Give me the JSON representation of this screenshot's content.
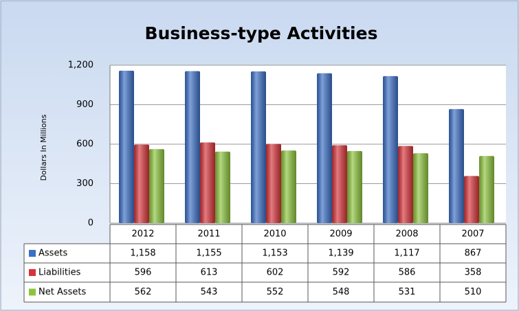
{
  "chart_data": {
    "type": "bar",
    "title": "Business-type Activities",
    "y_label": "Dollars In Millions",
    "categories": [
      "2012",
      "2011",
      "2010",
      "2009",
      "2008",
      "2007"
    ],
    "series": [
      {
        "name": "Assets",
        "color": "#3b6fc6",
        "values": [
          1158,
          1155,
          1153,
          1139,
          1117,
          867
        ],
        "value_labels": [
          "1,158",
          "1,155",
          "1,153",
          "1,139",
          "1,117",
          "867"
        ]
      },
      {
        "name": "Liabilities",
        "color": "#d7343a",
        "values": [
          596,
          613,
          602,
          592,
          586,
          358
        ],
        "value_labels": [
          "596",
          "613",
          "602",
          "592",
          "586",
          "358"
        ]
      },
      {
        "name": "Net Assets",
        "color": "#8cc43c",
        "values": [
          562,
          543,
          552,
          548,
          531,
          510
        ],
        "value_labels": [
          "562",
          "543",
          "552",
          "548",
          "531",
          "510"
        ]
      }
    ],
    "ylim": [
      0,
      1200
    ],
    "yticks": [
      0,
      300,
      600,
      900,
      {
        "value": 1200,
        "label": "1,200"
      }
    ],
    "grid": true
  }
}
